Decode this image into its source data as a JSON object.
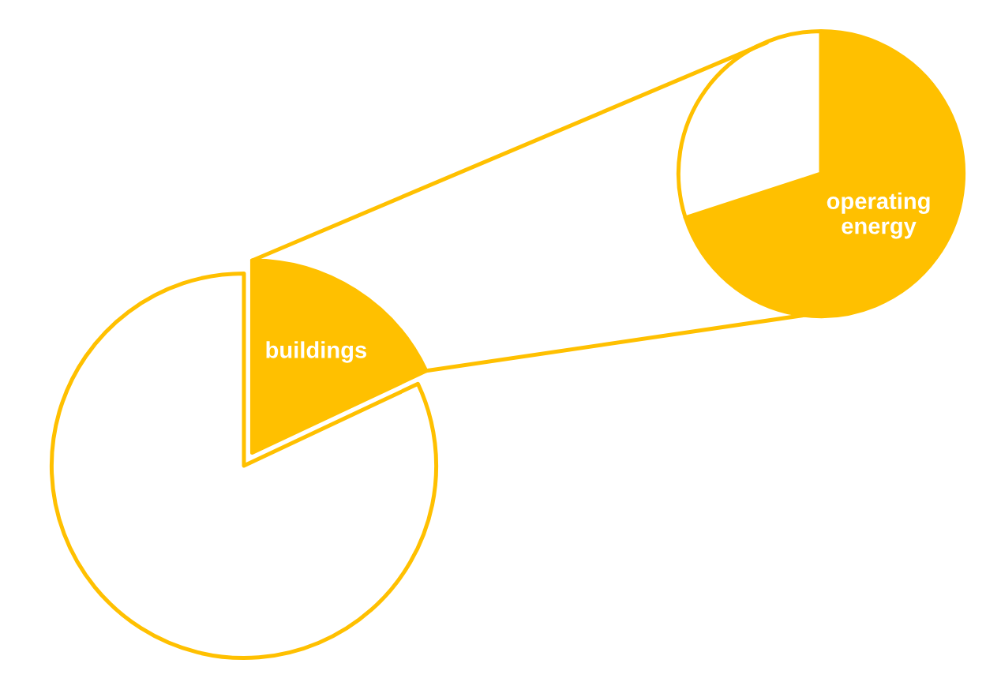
{
  "chart_data": [
    {
      "type": "pie",
      "categories": [
        "buildings",
        null
      ],
      "values": [
        18,
        82
      ],
      "colors": [
        "#ffc000",
        "#ffffff"
      ]
    },
    {
      "type": "pie",
      "categories": [
        "operating energy",
        null
      ],
      "values": [
        70,
        30
      ],
      "colors": [
        "#ffc000",
        "#ffffff"
      ]
    }
  ]
}
